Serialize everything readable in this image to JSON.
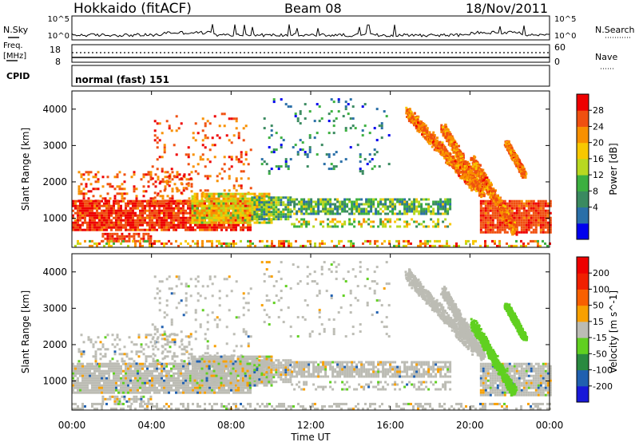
{
  "header": {
    "station": "Hokkaido (fitACF)",
    "beam": "Beam 08",
    "date": "18/Nov/2011"
  },
  "nsky_panel": {
    "left_label": "N.Sky",
    "right_label": "N.Search",
    "left_ticks": [
      "10^5",
      "10^0"
    ],
    "right_ticks": [
      "10^5",
      "10^0"
    ]
  },
  "freq_panel": {
    "left_label_1": "Freq.",
    "left_label_2": "[MHz]",
    "right_label": "Nave",
    "left_ticks": [
      "18",
      "8"
    ],
    "right_ticks": [
      "60",
      "0"
    ]
  },
  "cpid_panel": {
    "left_label": "CPID",
    "mode_text": "normal (fast) 151"
  },
  "colors": {
    "frame": "#000000",
    "ground_scatter": "#bcbcb4"
  },
  "chart_data": [
    {
      "type": "heatmap",
      "panel": "power",
      "ylabel": "Slant Range [km]",
      "yticks": [
        "4000",
        "3000",
        "2000",
        "1000"
      ],
      "y_values": [
        4000,
        3000,
        2000,
        1000
      ],
      "ylim": [
        200,
        4500
      ],
      "xlim_hours": [
        0,
        24
      ],
      "colorbar": {
        "label": "Power [dB]",
        "ticks": [
          "28",
          "24",
          "20",
          "16",
          "12",
          "8",
          "4"
        ],
        "range": [
          0,
          30
        ],
        "colors": [
          "#0000ee",
          "#2a6fa8",
          "#3a8a60",
          "#3cb040",
          "#b8d820",
          "#f8c800",
          "#f89000",
          "#f05010",
          "#ee0000"
        ]
      }
    },
    {
      "type": "heatmap",
      "panel": "velocity",
      "ylabel": "Slant Range [km]",
      "yticks": [
        "4000",
        "3000",
        "2000",
        "1000"
      ],
      "y_values": [
        4000,
        3000,
        2000,
        1000
      ],
      "ylim": [
        200,
        4500
      ],
      "xlim_hours": [
        0,
        24
      ],
      "colorbar": {
        "label": "Velocity [m s^-1]",
        "ticks": [
          "200",
          "100",
          "50",
          "15",
          "-15",
          "-50",
          "-100",
          "-200"
        ],
        "colors": [
          "#1818d8",
          "#2060b0",
          "#2a8a40",
          "#60d020",
          "#bcbcb4",
          "#f8a000",
          "#f86000",
          "#f02000",
          "#ee0000"
        ]
      }
    }
  ],
  "x_axis": {
    "label": "Time UT",
    "ticks": [
      "00:00",
      "04:00",
      "08:00",
      "12:00",
      "16:00",
      "20:00",
      "00:00"
    ],
    "hours": [
      0,
      4,
      8,
      12,
      16,
      20,
      24
    ]
  }
}
